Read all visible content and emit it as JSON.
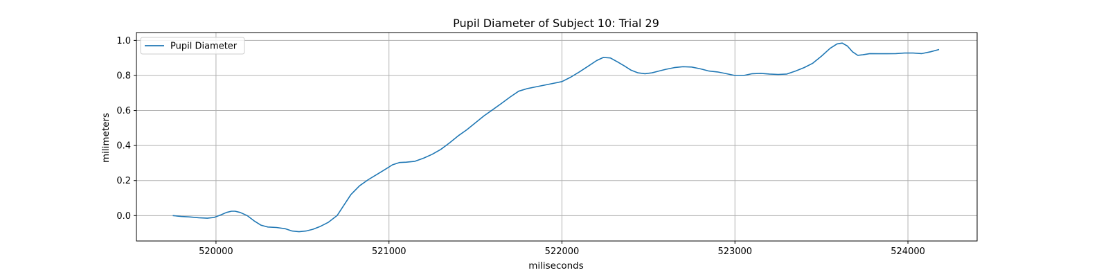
{
  "chart_data": {
    "type": "line",
    "title": "Pupil Diameter of Subject 10: Trial 29",
    "xlabel": "miliseconds",
    "ylabel": "milimeters",
    "xlim": [
      519540,
      524400
    ],
    "ylim": [
      -0.145,
      1.045
    ],
    "xticks": [
      520000,
      521000,
      522000,
      523000,
      524000
    ],
    "yticks": [
      0.0,
      0.2,
      0.4,
      0.6,
      0.8,
      1.0
    ],
    "ytick_labels": [
      "0.0",
      "0.2",
      "0.4",
      "0.6",
      "0.8",
      "1.0"
    ],
    "grid": true,
    "legend_position": "upper-left",
    "colors": {
      "series": "#1f77b4",
      "grid": "#b0b0b0",
      "frame": "#000000"
    },
    "series": [
      {
        "name": "Pupil Diameter",
        "x": [
          519750,
          519800,
          519850,
          519900,
          519950,
          519990,
          520030,
          520060,
          520090,
          520110,
          520140,
          520180,
          520220,
          520260,
          520300,
          520350,
          520400,
          520440,
          520480,
          520520,
          520560,
          520600,
          520650,
          520700,
          520740,
          520780,
          520830,
          520880,
          520930,
          520980,
          521020,
          521060,
          521100,
          521150,
          521200,
          521250,
          521300,
          521350,
          521400,
          521450,
          521500,
          521550,
          521600,
          521650,
          521700,
          521750,
          521800,
          521850,
          521900,
          521950,
          522000,
          522050,
          522100,
          522150,
          522200,
          522240,
          522280,
          522320,
          522360,
          522400,
          522440,
          522480,
          522520,
          522560,
          522600,
          522650,
          522700,
          522750,
          522800,
          522850,
          522900,
          522950,
          523000,
          523050,
          523100,
          523150,
          523200,
          523250,
          523300,
          523350,
          523400,
          523450,
          523500,
          523550,
          523590,
          523620,
          523650,
          523680,
          523710,
          523740,
          523780,
          523830,
          523880,
          523930,
          523980,
          524030,
          524080,
          524130,
          524180
        ],
        "values": [
          0.0,
          -0.005,
          -0.008,
          -0.012,
          -0.015,
          -0.01,
          0.005,
          0.018,
          0.025,
          0.025,
          0.018,
          0.0,
          -0.03,
          -0.055,
          -0.065,
          -0.068,
          -0.075,
          -0.088,
          -0.092,
          -0.088,
          -0.078,
          -0.063,
          -0.038,
          0.0,
          0.06,
          0.12,
          0.17,
          0.205,
          0.235,
          0.265,
          0.29,
          0.303,
          0.305,
          0.31,
          0.328,
          0.35,
          0.378,
          0.415,
          0.455,
          0.49,
          0.53,
          0.57,
          0.605,
          0.64,
          0.677,
          0.71,
          0.725,
          0.735,
          0.745,
          0.755,
          0.765,
          0.79,
          0.82,
          0.852,
          0.885,
          0.903,
          0.9,
          0.878,
          0.855,
          0.83,
          0.815,
          0.81,
          0.815,
          0.825,
          0.835,
          0.845,
          0.85,
          0.848,
          0.838,
          0.825,
          0.82,
          0.81,
          0.8,
          0.8,
          0.81,
          0.812,
          0.808,
          0.806,
          0.808,
          0.825,
          0.845,
          0.87,
          0.91,
          0.955,
          0.98,
          0.985,
          0.968,
          0.935,
          0.915,
          0.918,
          0.925,
          0.924,
          0.924,
          0.925,
          0.928,
          0.928,
          0.925,
          0.935,
          0.948
        ]
      }
    ]
  }
}
